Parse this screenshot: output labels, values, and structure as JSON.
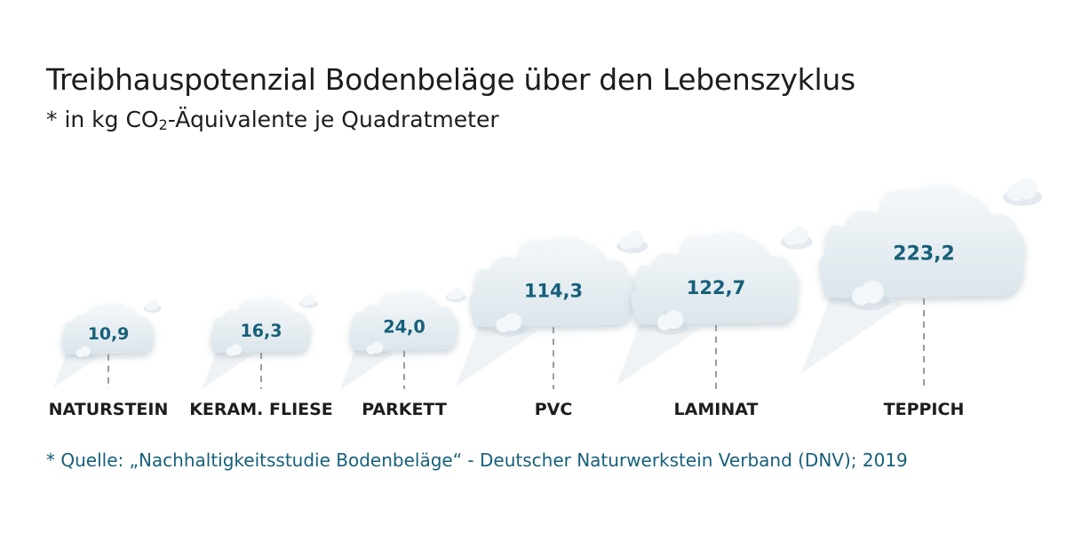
{
  "header": {
    "title": "Treibhauspotenzial Bodenbeläge über den Lebenszyklus",
    "subtitle_prefix": "* in kg CO",
    "subtitle_sub": "2",
    "subtitle_suffix": "-Äquivalente je Quadratmeter"
  },
  "footer": {
    "source": "* Quelle: „Nachhaltigkeitsstudie Bodenbeläge“ - Deutscher Naturwerkstein Verband (DNV); 2019"
  },
  "colors": {
    "value_text": "#17607a",
    "label_text": "#1d1d1b",
    "cloud_fill": "#e4ecf1",
    "cloud_shade": "#cdd9e1",
    "stem": "#9a9a9a"
  },
  "chart_data": {
    "type": "bar",
    "categories": [
      "NATURSTEIN",
      "KERAM. FLIESE",
      "PARKETT",
      "PVC",
      "LAMINAT",
      "TEPPICH"
    ],
    "values": [
      10.9,
      16.3,
      24.0,
      114.3,
      122.7,
      223.2
    ],
    "value_labels": [
      "10,9",
      "16,3",
      "24,0",
      "114,3",
      "122,7",
      "223,2"
    ]
  }
}
